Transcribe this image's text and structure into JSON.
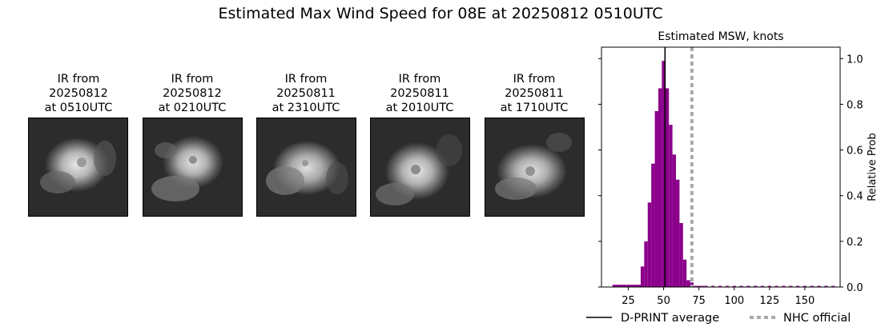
{
  "figure": {
    "title": "Estimated Max Wind Speed for 08E at 20250812 0510UTC"
  },
  "ir_panels": [
    {
      "line1": "IR from",
      "line2": "20250812",
      "line3": "at 0510UTC"
    },
    {
      "line1": "IR from",
      "line2": "20250812",
      "line3": "at 0210UTC"
    },
    {
      "line1": "IR from",
      "line2": "20250811",
      "line3": "at 2310UTC"
    },
    {
      "line1": "IR from",
      "line2": "20250811",
      "line3": "at 2010UTC"
    },
    {
      "line1": "IR from",
      "line2": "20250811",
      "line3": "at 1710UTC"
    }
  ],
  "chart_data": {
    "type": "bar",
    "title": "Estimated MSW, knots",
    "xlabel": "",
    "ylabel": "Relative Prob",
    "xlim": [
      6,
      175
    ],
    "ylim": [
      0,
      1.05
    ],
    "x_ticks": [
      25,
      50,
      75,
      100,
      125,
      150
    ],
    "y_ticks": [
      0.0,
      0.2,
      0.4,
      0.6,
      0.8,
      1.0
    ],
    "y_tick_labels": [
      "0.0",
      "0.2",
      "0.4",
      "0.6",
      "0.8",
      "1.0"
    ],
    "y_axis_side": "right",
    "bar_width": 2.5,
    "bar_color": "#8b008b",
    "series": [
      {
        "bins": [
          15,
          17.5,
          20,
          22.5,
          25,
          27.5,
          30,
          32.5,
          35,
          37.5,
          40,
          42.5,
          45,
          47.5,
          50,
          52.5,
          55,
          57.5,
          60,
          62.5,
          65,
          67.5,
          70,
          72.5,
          75,
          77.5,
          80,
          85,
          90,
          95,
          100,
          105,
          110,
          115,
          120,
          125,
          130,
          135,
          140,
          145,
          150,
          155,
          160,
          165,
          170
        ],
        "values": [
          0.01,
          0.01,
          0.01,
          0.01,
          0.01,
          0.01,
          0.01,
          0.01,
          0.09,
          0.2,
          0.37,
          0.54,
          0.77,
          0.87,
          0.99,
          0.87,
          0.71,
          0.58,
          0.47,
          0.28,
          0.12,
          0.03,
          0.02,
          0.005,
          0.005,
          0.005,
          0.005,
          0.005,
          0.005,
          0.005,
          0.005,
          0.005,
          0.005,
          0.005,
          0.005,
          0.005,
          0.005,
          0.005,
          0.005,
          0.005,
          0.005,
          0.005,
          0.005,
          0.005,
          0.005
        ]
      }
    ],
    "reference_lines": [
      {
        "name": "D-PRINT average",
        "x": 51,
        "color": "#000000",
        "style": "solid"
      },
      {
        "name": "NHC official",
        "x": 70,
        "color": "#a9a9a9",
        "style": "dotted"
      }
    ],
    "legend": {
      "placement": "bottom-right",
      "entries": [
        {
          "label": "D-PRINT average",
          "color": "#000000",
          "style": "solid"
        },
        {
          "label": "NHC official",
          "color": "#a9a9a9",
          "style": "dotted"
        }
      ]
    },
    "grid": false
  }
}
